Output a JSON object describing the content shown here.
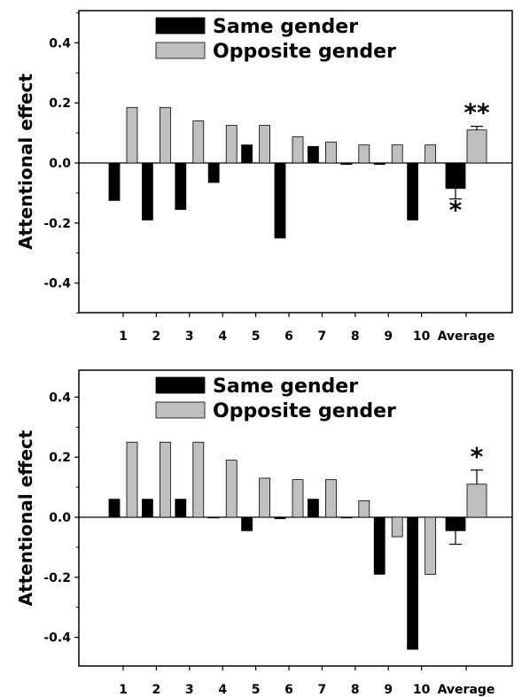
{
  "chart_data": [
    {
      "type": "bar",
      "ylabel": "Attentional effect",
      "ylim": [
        -0.5,
        0.5
      ],
      "yticks": [
        0.4,
        0.2,
        0.0,
        -0.2,
        -0.4
      ],
      "ytick_labels": [
        "0.4",
        "0.2",
        "0.0",
        "-0.2",
        "-0.4"
      ],
      "categories": [
        "1",
        "2",
        "3",
        "4",
        "5",
        "6",
        "7",
        "8",
        "9",
        "10",
        "Average"
      ],
      "legend": {
        "position": "top-left"
      },
      "series": [
        {
          "name": "Same gender",
          "color": "#000000",
          "values": [
            -0.125,
            -0.19,
            -0.155,
            -0.065,
            0.06,
            -0.25,
            0.055,
            -0.005,
            -0.005,
            -0.19,
            -0.085
          ],
          "errors": [
            null,
            null,
            null,
            null,
            null,
            null,
            null,
            null,
            null,
            null,
            0.035
          ]
        },
        {
          "name": "Opposite gender",
          "color": "#bfbfbf",
          "values": [
            0.185,
            0.185,
            0.14,
            0.125,
            0.125,
            0.087,
            0.07,
            0.06,
            0.06,
            0.06,
            0.11
          ],
          "errors": [
            null,
            null,
            null,
            null,
            null,
            null,
            null,
            null,
            null,
            null,
            0.012
          ]
        }
      ],
      "annotations": [
        {
          "text": "*",
          "category": "Average",
          "series": 0
        },
        {
          "text": "**",
          "category": "Average",
          "series": 1
        }
      ]
    },
    {
      "type": "bar",
      "ylabel": "Attentional effect",
      "ylim": [
        -0.5,
        0.5
      ],
      "yticks": [
        0.4,
        0.2,
        0.0,
        -0.2,
        -0.4
      ],
      "ytick_labels": [
        "0.4",
        "0.2",
        "0.0",
        "-0.2",
        "-0.4"
      ],
      "categories": [
        "1",
        "2",
        "3",
        "4",
        "5",
        "6",
        "7",
        "8",
        "9",
        "10",
        "Average"
      ],
      "legend": {
        "position": "top-left"
      },
      "series": [
        {
          "name": "Same gender",
          "color": "#000000",
          "values": [
            0.06,
            0.06,
            0.06,
            0.0,
            -0.045,
            -0.005,
            0.06,
            0.0,
            -0.19,
            -0.44,
            -0.045
          ],
          "errors": [
            null,
            null,
            null,
            null,
            null,
            null,
            null,
            null,
            null,
            null,
            0.045
          ]
        },
        {
          "name": "Opposite gender",
          "color": "#bfbfbf",
          "values": [
            0.25,
            0.25,
            0.25,
            0.19,
            0.13,
            0.125,
            0.125,
            0.055,
            -0.065,
            -0.19,
            0.11
          ],
          "errors": [
            null,
            null,
            null,
            null,
            null,
            null,
            null,
            null,
            null,
            null,
            0.047
          ]
        }
      ],
      "annotations": [
        {
          "text": "*",
          "category": "Average",
          "series": 1
        }
      ]
    }
  ]
}
